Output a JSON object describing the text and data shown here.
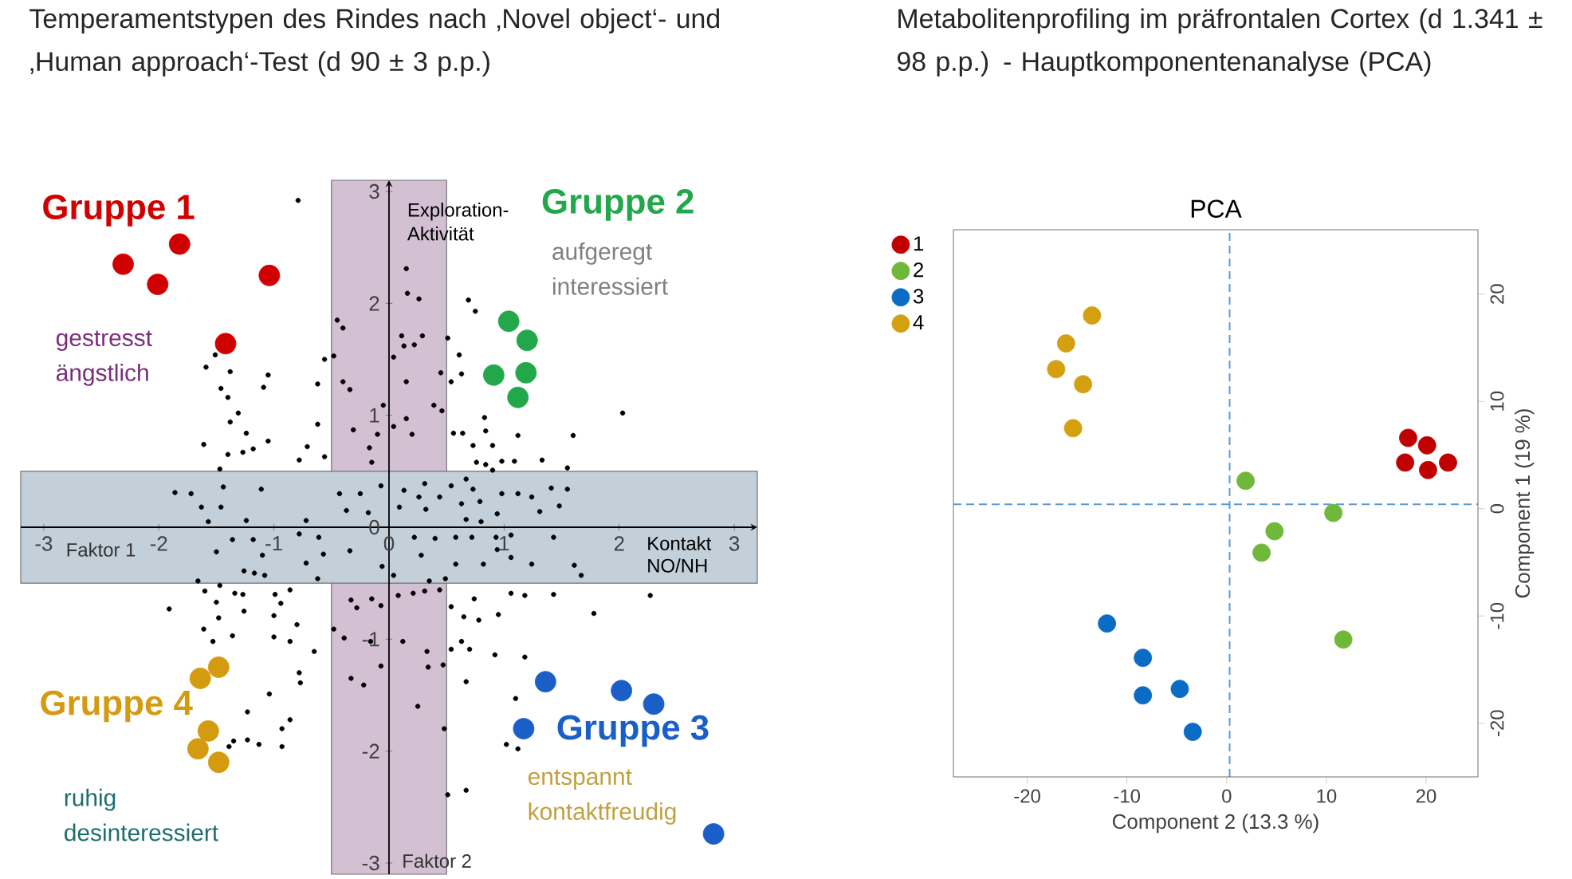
{
  "chart_data": [
    {
      "type": "scatter",
      "title": "Temperamentstypen des Rindes nach ‚Novel object‘- und ‚Human approach‘-Test (d 90 ± 3 p.p.)",
      "xlabel": "Kontakt NO/NH",
      "ylabel": "Exploration-Aktivität",
      "annotations": [
        "Faktor 1",
        "Faktor 2",
        "gestresst ängstlich",
        "aufgeregt interessiert",
        "entspannt kontaktfreudig",
        "ruhig desinteressiert"
      ],
      "xlim": [
        -3.2,
        3.2
      ],
      "ylim": [
        -3.1,
        3.1
      ],
      "xticks": [
        -3,
        -2,
        -1,
        0,
        1,
        2,
        3
      ],
      "yticks": [
        -3,
        -2,
        -1,
        0,
        1,
        2,
        3
      ],
      "marker": "circle",
      "bands": [
        {
          "axis": "x",
          "from": -0.5,
          "to": 0.5,
          "color": "#d3c0d3"
        },
        {
          "axis": "y",
          "from": -0.5,
          "to": 0.5,
          "color": "#c3d0da"
        }
      ],
      "series": [
        {
          "color": "#000000",
          "x": [
            -0.79,
            0.15,
            0.16,
            0.26,
            0.69,
            0.75,
            -0.45,
            -0.4,
            0.11,
            0.29,
            0.13,
            0.22,
            0.51,
            0.04,
            0.61,
            -0.56,
            -0.48,
            -1.51,
            -1.59,
            -1.38,
            -1.05,
            -1.09,
            -1.46,
            -1.4,
            -0.62,
            -0.4,
            -0.34,
            0.45,
            0.63,
            0.15,
            0.54,
            0.39,
            0.46,
            -0.05,
            0.15,
            0.04,
            0.2,
            -1.31,
            -1.38,
            -1.24,
            -1.05,
            -1.61,
            -1.4,
            -1.27,
            -1.18,
            -0.71,
            -0.78,
            -0.62,
            -0.31,
            -0.17,
            -0.1,
            -0.56,
            -0.15,
            0.83,
            0.84,
            0.56,
            0.64,
            1.12,
            1.6,
            2.03,
            0.73,
            0.9,
            0.98,
            1.09,
            1.33,
            0.76,
            0.84,
            0.9,
            1.55,
            -1.47,
            -1.86,
            -1.72,
            -1.44,
            -1.11,
            -1.63,
            -1.46,
            -1.24,
            -1.57,
            -0.43,
            -0.25,
            -0.07,
            -0.37,
            -0.18,
            0.13,
            0.31,
            0.26,
            0.09,
            0.32,
            0.44,
            0.54,
            0.67,
            0.73,
            0.63,
            0.79,
            0.98,
            0.94,
            1.12,
            1.24,
            1.31,
            1.41,
            1.55,
            1.48,
            0.67,
            0.8,
            -1.36,
            -1.18,
            -1.5,
            -1.1,
            -0.72,
            -0.61,
            -0.78,
            -0.57,
            -0.72,
            -1.26,
            -1.17,
            -1.08,
            -1.66,
            -0.62,
            -0.34,
            -0.06,
            0.04,
            0.22,
            0.28,
            0.4,
            0.58,
            0.72,
            0.93,
            1.06,
            1.43,
            0.58,
            0.82,
            0.94,
            1.06,
            1.24,
            1.61,
            1.67,
            0.35,
            0.49,
            -1.6,
            -1.47,
            -1.34,
            -1.27,
            -0.99,
            -0.86,
            -1.91,
            -1.5,
            -1.48,
            -1.26,
            -1.0,
            -0.94,
            -0.8,
            -1.61,
            -1.36,
            -1.53,
            -1.0,
            -0.86,
            -0.65,
            -0.78,
            -0.77,
            -1.04,
            -1.23,
            -0.86,
            -0.93,
            -1.35,
            -1.23,
            -1.13,
            -0.93,
            -1.39,
            -0.48,
            -0.39,
            -0.33,
            -0.28,
            -0.15,
            -0.07,
            -0.07,
            -0.16,
            -0.33,
            -0.22,
            0.08,
            0.21,
            0.31,
            0.44,
            0.12,
            0.33,
            0.34,
            0.47,
            0.54,
            0.54,
            0.65,
            0.74,
            0.78,
            0.63,
            0.7,
            0.92,
            0.95,
            1.06,
            1.18,
            1.43,
            1.78,
            2.27,
            1.18,
            0.67,
            0.25,
            0.48,
            0.51,
            0.67,
            1.1,
            1.02,
            1.12
          ],
          "values": [
            2.92,
            2.31,
            2.09,
            2.04,
            2.03,
            1.93,
            1.85,
            1.78,
            1.71,
            1.71,
            1.62,
            1.63,
            1.69,
            1.52,
            1.54,
            1.5,
            1.53,
            1.54,
            1.43,
            1.39,
            1.36,
            1.25,
            1.24,
            1.16,
            1.28,
            1.3,
            1.23,
            1.38,
            1.37,
            1.3,
            1.3,
            1.09,
            1.04,
            1.09,
            0.97,
            0.9,
            0.83,
            1.02,
            0.94,
            0.84,
            0.77,
            0.74,
            0.65,
            0.67,
            0.7,
            0.72,
            0.6,
            0.92,
            0.87,
            0.71,
            0.83,
            0.63,
            0.58,
            0.98,
            0.86,
            0.84,
            0.84,
            0.82,
            0.82,
            1.02,
            0.73,
            0.73,
            0.59,
            0.59,
            0.6,
            0.58,
            0.56,
            0.51,
            0.53,
            0.52,
            0.31,
            0.3,
            0.36,
            0.34,
            0.18,
            0.18,
            0.06,
            0.05,
            0.3,
            0.3,
            0.37,
            0.15,
            0.13,
            0.33,
            0.39,
            0.27,
            0.18,
            0.16,
            0.27,
            0.37,
            0.43,
            0.34,
            0.21,
            0.23,
            0.3,
            0.12,
            0.3,
            0.27,
            0.14,
            0.35,
            0.34,
            0.19,
            0.07,
            0.05,
            -0.11,
            -0.11,
            -0.22,
            -0.25,
            0.06,
            -0.09,
            -0.06,
            -0.24,
            -0.32,
            -0.39,
            -0.41,
            -0.43,
            -0.48,
            -0.46,
            -0.21,
            -0.35,
            -0.43,
            -0.09,
            -0.25,
            -0.1,
            -0.09,
            -0.09,
            -0.09,
            -0.07,
            -0.09,
            -0.33,
            -0.33,
            -0.2,
            -0.27,
            -0.33,
            -0.34,
            -0.43,
            -0.48,
            -0.46,
            -0.57,
            -0.52,
            -0.59,
            -0.6,
            -0.6,
            -0.56,
            -0.73,
            -0.67,
            -0.81,
            -0.75,
            -0.79,
            -0.68,
            -0.87,
            -0.91,
            -0.97,
            -1.02,
            -0.98,
            -1.02,
            -1.11,
            -1.3,
            -1.39,
            -1.49,
            -1.65,
            -1.72,
            -1.8,
            -1.91,
            -1.9,
            -1.94,
            -1.96,
            -1.96,
            -0.91,
            -0.99,
            -0.65,
            -0.72,
            -0.64,
            -0.7,
            -1.24,
            -1.02,
            -1.35,
            -1.41,
            -0.61,
            -0.59,
            -0.57,
            -0.56,
            -1.02,
            -1.11,
            -1.25,
            -1.23,
            -1.09,
            -0.71,
            -0.8,
            -0.64,
            -0.83,
            -1.02,
            -1.09,
            -1.14,
            -0.78,
            -0.59,
            -0.61,
            -0.6,
            -0.77,
            -0.61,
            -1.16,
            -1.38,
            -1.6,
            -1.8,
            -2.39,
            -2.35,
            -1.53,
            -1.94,
            -1.98
          ]
        },
        {
          "name": "Gruppe 1",
          "color": "#d00000",
          "x": [
            -2.31,
            -1.82,
            -2.01,
            -1.04,
            -1.42
          ],
          "values": [
            2.35,
            2.53,
            2.17,
            2.25,
            1.64
          ]
        },
        {
          "name": "Gruppe 2",
          "color": "#22a84a",
          "x": [
            1.04,
            1.2,
            0.91,
            1.19,
            1.12
          ],
          "values": [
            1.84,
            1.67,
            1.36,
            1.38,
            1.16
          ]
        },
        {
          "name": "Gruppe 3",
          "color": "#1a5fc8",
          "x": [
            1.36,
            2.02,
            2.3,
            1.17,
            2.82
          ],
          "values": [
            -1.38,
            -1.46,
            -1.58,
            -1.8,
            -2.74
          ]
        },
        {
          "name": "Gruppe 4",
          "color": "#d49a10",
          "x": [
            -1.48,
            -1.64,
            -1.57,
            -1.66,
            -1.48
          ],
          "values": [
            -1.25,
            -1.35,
            -1.82,
            -1.98,
            -2.1
          ]
        }
      ]
    },
    {
      "type": "scatter",
      "title": "Metabolitenprofiling im präfrontalen Cortex (d 1.341 ± 98 p.p.) - Hauptkomponentenanalyse (PCA)",
      "subtitle": "PCA",
      "xlabel": "Component 2 (13.3 %)",
      "ylabel": "Component 1 (19 %)",
      "xlim": [
        -27.4,
        25.2
      ],
      "ylim": [
        -25,
        26
      ],
      "xticks": [
        -20,
        -10,
        0,
        10,
        20
      ],
      "yticks": [
        -20,
        -10,
        0,
        10,
        20
      ],
      "legend": "top left",
      "marker": "circle",
      "ref_lines": [
        {
          "axis": "x",
          "value": 0.3,
          "color": "#5b9bd5",
          "line_style": "dashed"
        },
        {
          "axis": "y",
          "value": 0.4,
          "color": "#5b9bd5",
          "line_style": "dashed"
        }
      ],
      "series": [
        {
          "name": "1",
          "color": "#c00000",
          "x": [
            18.2,
            20.1,
            17.9,
            20.2,
            22.2
          ],
          "values": [
            6.6,
            5.9,
            4.3,
            3.6,
            4.3
          ]
        },
        {
          "name": "2",
          "color": "#6fb83a",
          "x": [
            1.9,
            10.7,
            4.8,
            3.5,
            11.7
          ],
          "values": [
            2.6,
            -0.4,
            -2.1,
            -4.1,
            -12.2
          ]
        },
        {
          "name": "3",
          "color": "#0a6cc4",
          "x": [
            -12.0,
            -8.4,
            -8.4,
            -4.7,
            -3.4
          ],
          "values": [
            -10.7,
            -13.9,
            -17.4,
            -16.8,
            -20.8
          ]
        },
        {
          "name": "4",
          "color": "#d4a010",
          "x": [
            -13.5,
            -16.1,
            -17.1,
            -14.4,
            -15.4
          ],
          "values": [
            18.0,
            15.4,
            13.0,
            11.6,
            7.5
          ]
        }
      ]
    }
  ]
}
